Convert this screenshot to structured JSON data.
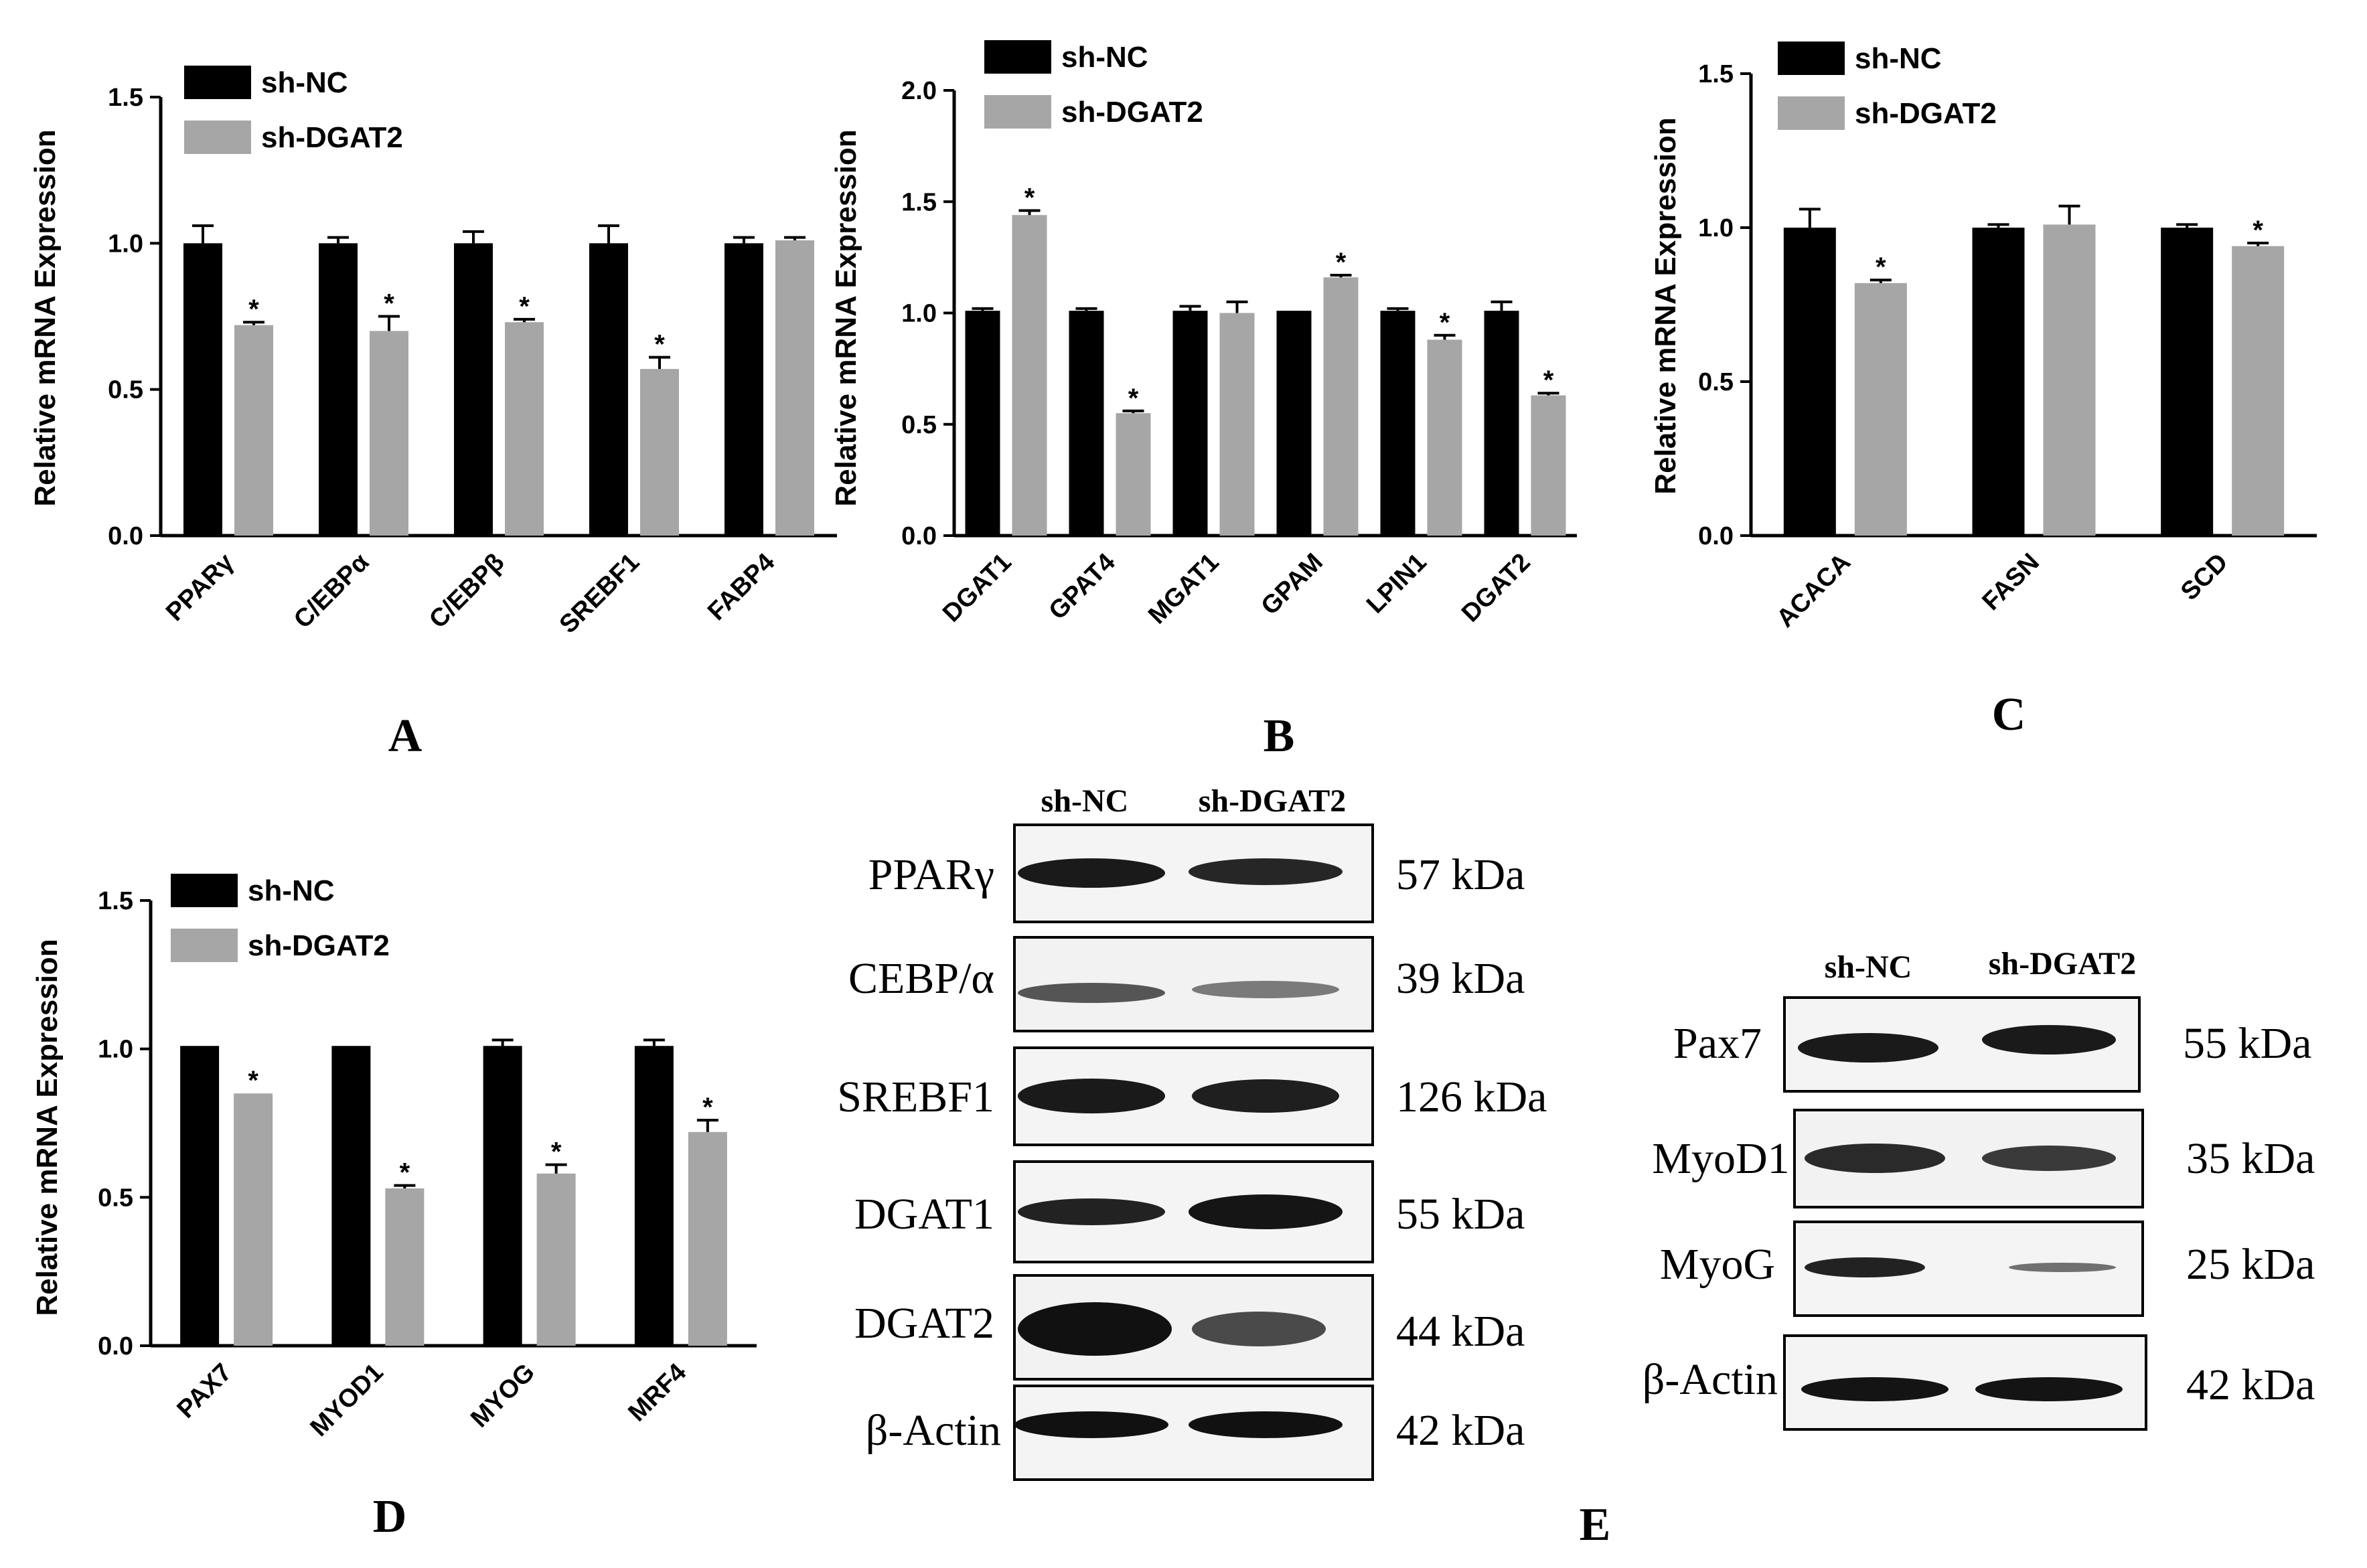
{
  "chart_data": [
    {
      "panel": "A",
      "type": "bar",
      "ylabel": "Relative mRNA Expression",
      "ylim": [
        0,
        1.5
      ],
      "yticks": [
        "0.0",
        "0.5",
        "1.0",
        "1.5"
      ],
      "categories": [
        "PPARγ",
        "C/EBPα",
        "C/EBPβ",
        "SREBF1",
        "FABP4"
      ],
      "series": [
        {
          "name": "sh-NC",
          "color": "#000000",
          "values": [
            1.0,
            1.0,
            1.0,
            1.0,
            1.0
          ],
          "errors": [
            0.06,
            0.02,
            0.04,
            0.06,
            0.02
          ]
        },
        {
          "name": "sh-DGAT2",
          "color": "#a6a6a6",
          "values": [
            0.72,
            0.7,
            0.73,
            0.57,
            1.01
          ],
          "errors": [
            0.01,
            0.05,
            0.01,
            0.04,
            0.01
          ]
        }
      ],
      "significant": [
        false,
        false,
        false,
        false,
        false,
        true,
        true,
        true,
        true,
        false
      ],
      "significance_marker": "*",
      "legend_position": "top-left"
    },
    {
      "panel": "B",
      "type": "bar",
      "ylabel": "Relative mRNA Expression",
      "ylim": [
        0,
        2.0
      ],
      "yticks": [
        "0.0",
        "0.5",
        "1.0",
        "1.5",
        "2.0"
      ],
      "categories": [
        "DGAT1",
        "GPAT4",
        "MGAT1",
        "GPAM",
        "LPIN1",
        "DGAT2"
      ],
      "series": [
        {
          "name": "sh-NC",
          "color": "#000000",
          "values": [
            1.01,
            1.01,
            1.01,
            1.01,
            1.01,
            1.01
          ],
          "errors": [
            0.01,
            0.01,
            0.02,
            0.0,
            0.01,
            0.04
          ]
        },
        {
          "name": "sh-DGAT2",
          "color": "#a6a6a6",
          "values": [
            1.44,
            0.55,
            1.0,
            1.16,
            0.88,
            0.63
          ],
          "errors": [
            0.02,
            0.01,
            0.05,
            0.01,
            0.02,
            0.01
          ]
        }
      ],
      "significant": [
        false,
        false,
        false,
        false,
        false,
        false,
        true,
        true,
        false,
        true,
        true,
        true
      ],
      "significance_marker": "*",
      "legend_position": "top-left"
    },
    {
      "panel": "C",
      "type": "bar",
      "ylabel": "Relative mRNA Expression",
      "ylim": [
        0,
        1.5
      ],
      "yticks": [
        "0.0",
        "0.5",
        "1.0",
        "1.5"
      ],
      "categories": [
        "ACACA",
        "FASN",
        "SCD"
      ],
      "series": [
        {
          "name": "sh-NC",
          "color": "#000000",
          "values": [
            1.0,
            1.0,
            1.0
          ],
          "errors": [
            0.06,
            0.01,
            0.01
          ]
        },
        {
          "name": "sh-DGAT2",
          "color": "#a6a6a6",
          "values": [
            0.82,
            1.01,
            0.94
          ],
          "errors": [
            0.01,
            0.06,
            0.01
          ]
        }
      ],
      "significant": [
        false,
        false,
        false,
        true,
        false,
        true
      ],
      "significance_marker": "*",
      "legend_position": "top-left"
    },
    {
      "panel": "D",
      "type": "bar",
      "ylabel": "Relative mRNA Expression",
      "ylim": [
        0,
        1.5
      ],
      "yticks": [
        "0.0",
        "0.5",
        "1.0",
        "1.5"
      ],
      "categories": [
        "PAX7",
        "MYOD1",
        "MYOG",
        "MRF4"
      ],
      "series": [
        {
          "name": "sh-NC",
          "color": "#000000",
          "values": [
            1.01,
            1.01,
            1.01,
            1.01
          ],
          "errors": [
            0.0,
            0.0,
            0.02,
            0.02
          ]
        },
        {
          "name": "sh-DGAT2",
          "color": "#a6a6a6",
          "values": [
            0.85,
            0.53,
            0.58,
            0.72
          ],
          "errors": [
            0.0,
            0.01,
            0.03,
            0.04
          ]
        }
      ],
      "significant": [
        false,
        false,
        false,
        false,
        true,
        true,
        true,
        true
      ],
      "significance_marker": "*",
      "legend_position": "top-left"
    }
  ],
  "panel_labels": [
    "A",
    "B",
    "C",
    "D",
    "E"
  ],
  "blots": [
    {
      "panel": "E",
      "lanes": [
        "sh-NC",
        "sh-DGAT2"
      ],
      "rows": [
        {
          "protein": "PPARγ",
          "size": "57 kDa"
        },
        {
          "protein": "CEBP/α",
          "size": "39 kDa"
        },
        {
          "protein": "SREBF1",
          "size": "126 kDa"
        },
        {
          "protein": "DGAT1",
          "size": "55 kDa"
        },
        {
          "protein": "DGAT2",
          "size": "44 kDa"
        },
        {
          "protein": "β-Actin",
          "size": "42 kDa"
        }
      ]
    },
    {
      "panel": "E",
      "lanes": [
        "sh-NC",
        "sh-DGAT2"
      ],
      "rows": [
        {
          "protein": "Pax7",
          "size": "55 kDa"
        },
        {
          "protein": "MyoD1",
          "size": "35 kDa"
        },
        {
          "protein": "MyoG",
          "size": "25 kDa"
        },
        {
          "protein": "β-Actin",
          "size": "42 kDa"
        }
      ]
    }
  ]
}
